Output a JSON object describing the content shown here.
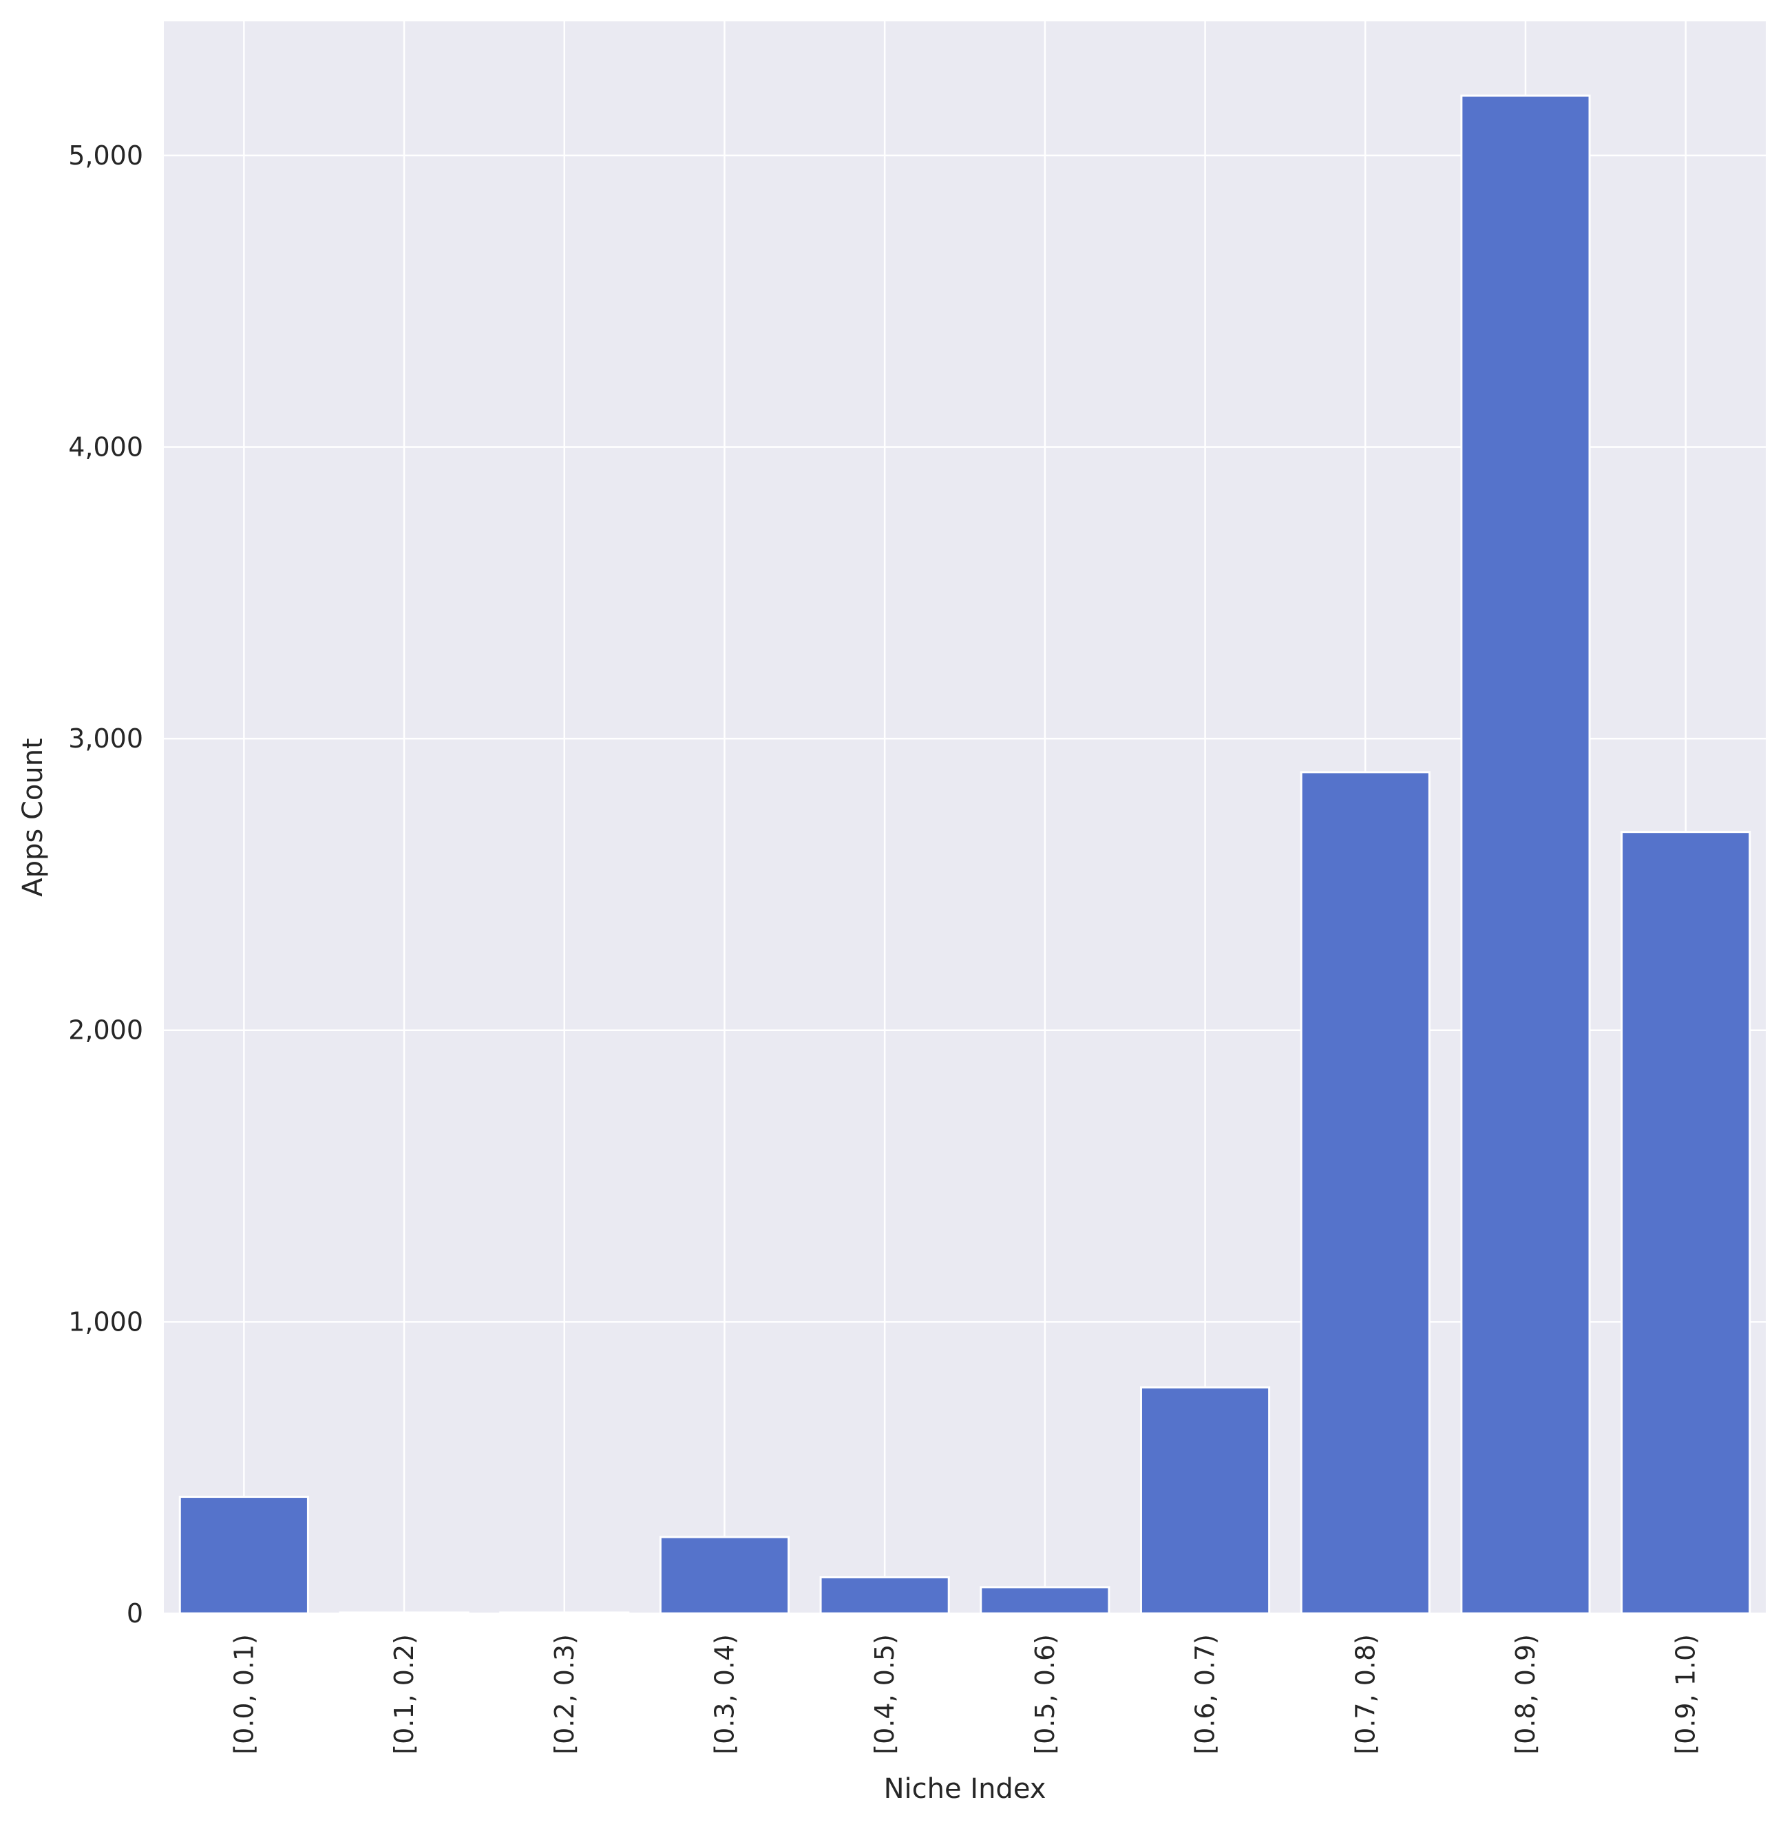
{
  "chart_data": {
    "type": "bar",
    "title": "",
    "xlabel": "Niche Index",
    "ylabel": "Apps Count",
    "categories": [
      "[0.0, 0.1)",
      "[0.1, 0.2)",
      "[0.2, 0.3)",
      "[0.3, 0.4)",
      "[0.4, 0.5)",
      "[0.5, 0.6)",
      "[0.6, 0.7)",
      "[0.7, 0.8)",
      "[0.8, 0.9)",
      "[0.9, 1.0)"
    ],
    "values": [
      400,
      3,
      3,
      262,
      124,
      90,
      775,
      2885,
      5205,
      2680
    ],
    "ylim": [
      0,
      5460
    ],
    "yticks": [
      0,
      1000,
      2000,
      3000,
      4000,
      5000
    ],
    "ytick_labels": [
      "0",
      "1,000",
      "2,000",
      "3,000",
      "4,000",
      "5,000"
    ],
    "grid": true,
    "colors": {
      "bar": "#5573cb",
      "background": "#eaeaf2",
      "grid": "#ffffff"
    }
  }
}
